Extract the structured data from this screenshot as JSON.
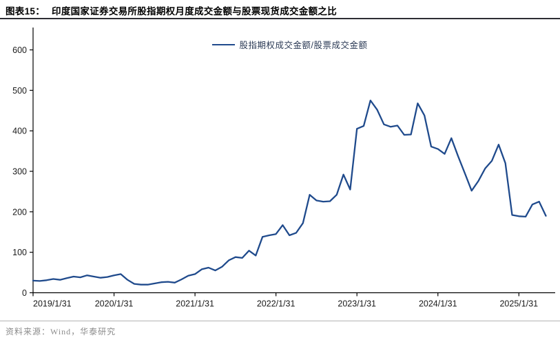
{
  "header": {
    "prefix": "图表15：",
    "title": "印度国家证券交易所股指期权月度成交金额与股票现货成交金额之比"
  },
  "legend": {
    "label": "股指期权成交金额/股票成交金额"
  },
  "footer": {
    "source": "资料来源：Wind，华泰研究"
  },
  "colors": {
    "line": "#1f4a8c",
    "axis": "#000000",
    "tick_text": "#1a1a1a",
    "header_rule": "#2d2d33",
    "legend_text": "#2b3a55",
    "footer_text": "#8c8c8c",
    "footer_rule": "#b3b3b3"
  },
  "chart_data": {
    "type": "line",
    "title": "印度国家证券交易所股指期权月度成交金额与股票现货成交金额之比",
    "xlabel": "",
    "ylabel": "",
    "ylim": [
      0,
      600
    ],
    "y_ticks": [
      0,
      100,
      200,
      300,
      400,
      500,
      600
    ],
    "x_tick_labels": [
      "2019/1/31",
      "2020/1/31",
      "2021/1/31",
      "2022/1/31",
      "2023/1/31",
      "2024/1/31",
      "2025/1/31"
    ],
    "grid": false,
    "legend_position": "top-center",
    "categories": [
      "2019/1",
      "2019/2",
      "2019/3",
      "2019/4",
      "2019/5",
      "2019/6",
      "2019/7",
      "2019/8",
      "2019/9",
      "2019/10",
      "2019/11",
      "2019/12",
      "2020/1",
      "2020/2",
      "2020/3",
      "2020/4",
      "2020/5",
      "2020/6",
      "2020/7",
      "2020/8",
      "2020/9",
      "2020/10",
      "2020/11",
      "2020/12",
      "2021/1",
      "2021/2",
      "2021/3",
      "2021/4",
      "2021/5",
      "2021/6",
      "2021/7",
      "2021/8",
      "2021/9",
      "2021/10",
      "2021/11",
      "2021/12",
      "2022/1",
      "2022/2",
      "2022/3",
      "2022/4",
      "2022/5",
      "2022/6",
      "2022/7",
      "2022/8",
      "2022/9",
      "2022/10",
      "2022/11",
      "2022/12",
      "2023/1",
      "2023/2",
      "2023/3",
      "2023/4",
      "2023/5",
      "2023/6",
      "2023/7",
      "2023/8",
      "2023/9",
      "2023/10",
      "2023/11",
      "2023/12",
      "2024/1",
      "2024/2",
      "2024/3",
      "2024/4",
      "2024/5",
      "2024/6",
      "2024/7",
      "2024/8",
      "2024/9",
      "2024/10",
      "2024/11",
      "2024/12",
      "2025/1",
      "2025/2",
      "2025/3",
      "2025/4",
      "2025/5"
    ],
    "series": [
      {
        "name": "股指期权成交金额/股票成交金额",
        "values": [
          30,
          29,
          31,
          34,
          32,
          36,
          40,
          38,
          43,
          40,
          37,
          39,
          43,
          46,
          32,
          22,
          20,
          20,
          23,
          26,
          27,
          25,
          33,
          42,
          46,
          58,
          62,
          55,
          64,
          80,
          88,
          86,
          104,
          92,
          138,
          142,
          145,
          167,
          142,
          148,
          172,
          242,
          228,
          225,
          226,
          242,
          292,
          255,
          405,
          412,
          475,
          452,
          416,
          410,
          413,
          390,
          391,
          468,
          438,
          361,
          355,
          343,
          382,
          337,
          295,
          252,
          276,
          307,
          326,
          366,
          320,
          192,
          189,
          188,
          218,
          225,
          190
        ]
      }
    ]
  }
}
